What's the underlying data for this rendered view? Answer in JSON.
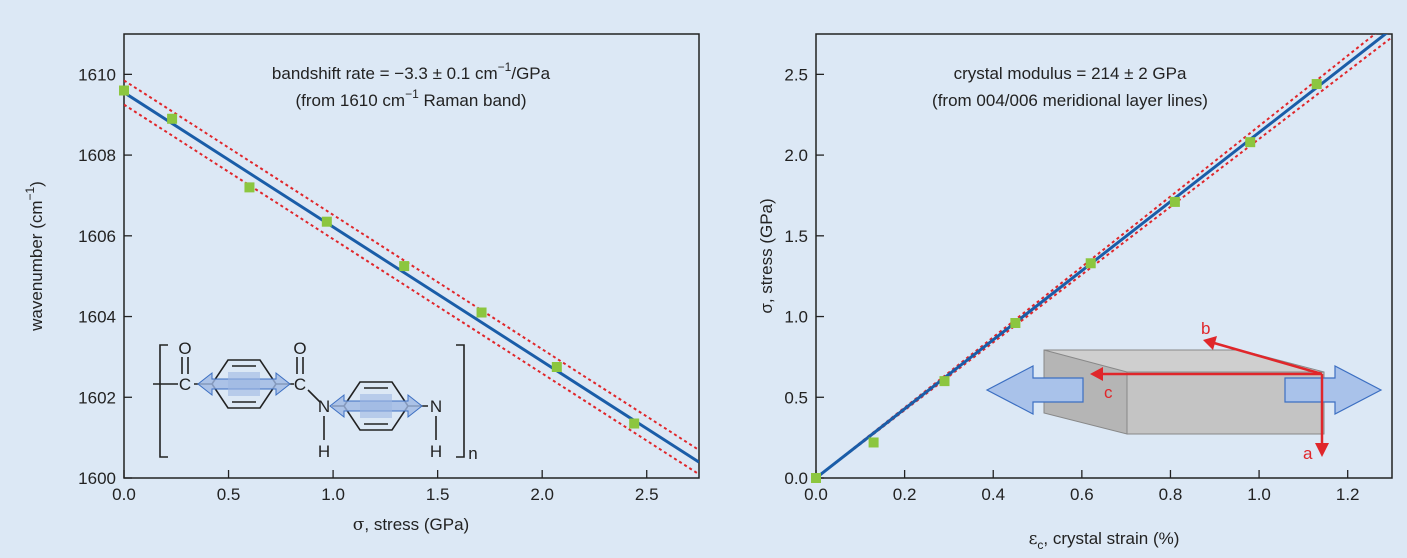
{
  "chart_data": [
    {
      "type": "scatter",
      "xlabel_symbol": "σ",
      "xlabel": ", stress (GPa)",
      "ylabel": "wavenumber (cm",
      "ylabel_sup": "−1",
      "ylabel_end": ")",
      "xlim": [
        0,
        2.75
      ],
      "ylim": [
        1600,
        1611
      ],
      "xticks": [
        "0.0",
        "0.5",
        "1.0",
        "1.5",
        "2.0",
        "2.5"
      ],
      "yticks": [
        "1600",
        "1602",
        "1604",
        "1606",
        "1608",
        "1610"
      ],
      "annotation_line1_a": "bandshift rate = −3.3 ± 0.1 cm",
      "annotation_line1_sup": "−1",
      "annotation_line1_b": "/GPa",
      "annotation_line2_a": "(from 1610 cm",
      "annotation_line2_sup": "−1",
      "annotation_line2_b": " Raman band)",
      "points": {
        "x": [
          0.0,
          0.23,
          0.6,
          0.97,
          1.34,
          1.71,
          2.07,
          2.44
        ],
        "y": [
          1609.6,
          1608.9,
          1607.2,
          1606.35,
          1605.25,
          1604.1,
          1602.75,
          1601.35
        ]
      },
      "fit": {
        "intercept": 1609.55,
        "slope": -3.33
      },
      "confidence_offset": 0.3,
      "colors": {
        "points": "#8cc63f",
        "fit": "#1a5da8",
        "bounds": "#e0262a"
      },
      "structure_labels": {
        "o1": "O",
        "o2": "O",
        "c1": "C",
        "c2": "C",
        "n1": "N",
        "n2": "N",
        "h1": "H",
        "h2": "H",
        "sub": "n"
      }
    },
    {
      "type": "scatter",
      "xlabel_symbol": "ε",
      "xlabel_sub": "c",
      "xlabel": ", crystal strain (%)",
      "ylabel": "σ, stress (GPa)",
      "xlim": [
        0,
        1.3
      ],
      "ylim": [
        0,
        2.75
      ],
      "xticks": [
        "0.0",
        "0.2",
        "0.4",
        "0.6",
        "0.8",
        "1.0",
        "1.2"
      ],
      "yticks": [
        "0.0",
        "0.5",
        "1.0",
        "1.5",
        "2.0",
        "2.5"
      ],
      "annotation_line1": "crystal modulus = 214 ± 2 GPa",
      "annotation_line2": "(from 004/006 meridional layer lines)",
      "points": {
        "x": [
          0.0,
          0.13,
          0.29,
          0.45,
          0.62,
          0.81,
          0.98,
          1.13
        ],
        "y": [
          0.0,
          0.22,
          0.6,
          0.96,
          1.33,
          1.71,
          2.08,
          2.44
        ]
      },
      "fit": {
        "intercept": 0.0,
        "slope": 2.14
      },
      "colors": {
        "points": "#8cc63f",
        "fit": "#1a5da8",
        "bounds": "#e0262a"
      },
      "crystal_axes": {
        "a": "a",
        "b": "b",
        "c": "c"
      }
    }
  ]
}
